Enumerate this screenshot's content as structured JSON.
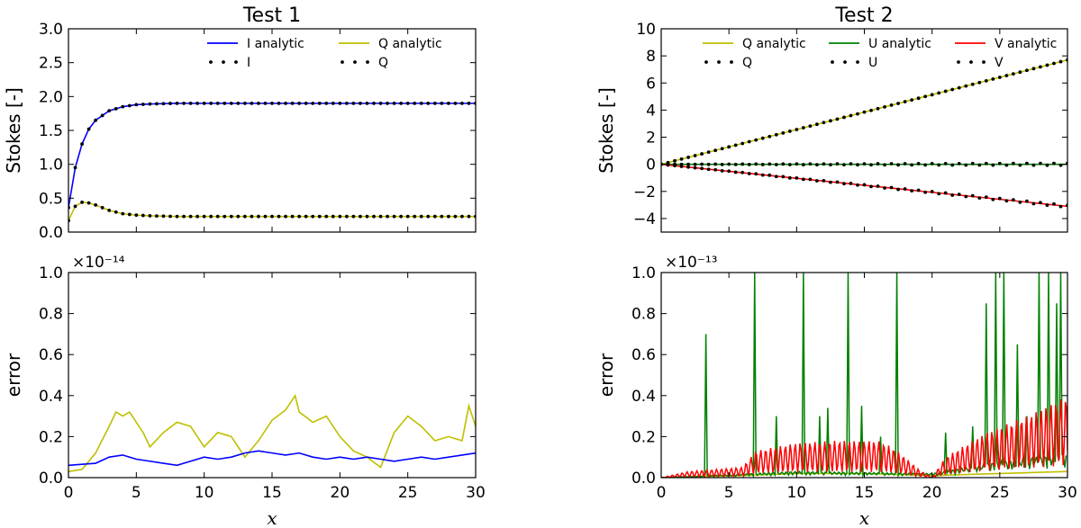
{
  "chart_data": [
    {
      "id": "test1_stokes",
      "type": "line",
      "title": "Test 1",
      "xlabel": "",
      "ylabel": "Stokes [-]",
      "xlim": [
        0,
        30
      ],
      "ylim": [
        0,
        3.0
      ],
      "xticks": [
        0,
        5,
        10,
        15,
        20,
        25,
        30
      ],
      "xtick_labels": [],
      "yticks": [
        0.0,
        0.5,
        1.0,
        1.5,
        2.0,
        2.5,
        3.0
      ],
      "ytick_labels": [
        "0.0",
        "0.5",
        "1.0",
        "1.5",
        "2.0",
        "2.5",
        "3.0"
      ],
      "legend": {
        "placement": "top-right",
        "columns": 2
      },
      "series": [
        {
          "name": "I analytic",
          "style": "line",
          "color": "#0000ff",
          "model": "i_analytic",
          "x": [
            0,
            0.5,
            1,
            1.5,
            2,
            3,
            4,
            5,
            6,
            8,
            10,
            15,
            20,
            25,
            30
          ],
          "y": [
            0.36,
            0.95,
            1.3,
            1.52,
            1.65,
            1.79,
            1.85,
            1.88,
            1.89,
            1.9,
            1.9,
            1.9,
            1.9,
            1.9,
            1.9
          ]
        },
        {
          "name": "Q analytic",
          "style": "line",
          "color": "#bfbf00",
          "model": "q_analytic",
          "x": [
            0,
            0.5,
            1,
            1.5,
            2,
            3,
            4,
            5,
            6,
            8,
            10,
            15,
            20,
            25,
            30
          ],
          "y": [
            0.17,
            0.38,
            0.44,
            0.43,
            0.4,
            0.32,
            0.27,
            0.25,
            0.24,
            0.23,
            0.23,
            0.23,
            0.23,
            0.23,
            0.23
          ]
        },
        {
          "name": "I",
          "style": "dots",
          "color": "#000000",
          "model": "i_analytic",
          "x_range": [
            0,
            30
          ],
          "x_step": 0.5
        },
        {
          "name": "Q",
          "style": "dots",
          "color": "#000000",
          "model": "q_analytic",
          "x_range": [
            0,
            30
          ],
          "x_step": 0.5
        }
      ]
    },
    {
      "id": "test1_error",
      "type": "line",
      "title": "",
      "xlabel": "x",
      "ylabel": "error",
      "exponent_label": "×10⁻¹⁴",
      "xlim": [
        0,
        30
      ],
      "ylim": [
        0,
        1.0
      ],
      "xticks": [
        0,
        5,
        10,
        15,
        20,
        25,
        30
      ],
      "xtick_labels": [
        "0",
        "5",
        "10",
        "15",
        "20",
        "25",
        "30"
      ],
      "yticks": [
        0.0,
        0.2,
        0.4,
        0.6,
        0.8,
        1.0
      ],
      "ytick_labels": [
        "0.0",
        "0.2",
        "0.4",
        "0.6",
        "0.8",
        "1.0"
      ],
      "series": [
        {
          "color": "#bfbf00",
          "x": [
            0,
            1,
            2,
            3,
            3.5,
            4,
            4.5,
            5,
            5.5,
            6,
            7,
            8,
            9,
            10,
            11,
            12,
            13,
            14,
            15,
            16,
            16.7,
            17,
            18,
            19,
            20,
            21,
            22,
            23,
            24,
            25,
            26,
            27,
            28,
            29,
            29.5,
            30
          ],
          "y": [
            0.03,
            0.04,
            0.12,
            0.25,
            0.32,
            0.3,
            0.32,
            0.27,
            0.22,
            0.15,
            0.22,
            0.27,
            0.25,
            0.15,
            0.22,
            0.2,
            0.1,
            0.18,
            0.28,
            0.33,
            0.4,
            0.32,
            0.27,
            0.3,
            0.2,
            0.13,
            0.1,
            0.05,
            0.22,
            0.3,
            0.25,
            0.18,
            0.2,
            0.18,
            0.35,
            0.25
          ]
        },
        {
          "color": "#0000ff",
          "x": [
            0,
            2,
            3,
            4,
            5,
            6,
            7,
            8,
            9,
            10,
            11,
            12,
            13,
            14,
            15,
            16,
            17,
            18,
            19,
            20,
            21,
            22,
            23,
            24,
            25,
            26,
            27,
            28,
            29,
            30
          ],
          "y": [
            0.06,
            0.07,
            0.1,
            0.11,
            0.09,
            0.08,
            0.07,
            0.06,
            0.08,
            0.1,
            0.09,
            0.1,
            0.12,
            0.13,
            0.12,
            0.11,
            0.12,
            0.1,
            0.09,
            0.1,
            0.09,
            0.1,
            0.09,
            0.08,
            0.09,
            0.1,
            0.09,
            0.1,
            0.11,
            0.12
          ]
        }
      ]
    },
    {
      "id": "test2_stokes",
      "type": "line",
      "title": "Test 2",
      "xlabel": "",
      "ylabel": "Stokes [-]",
      "xlim": [
        0,
        30
      ],
      "ylim": [
        -5,
        10
      ],
      "xticks": [
        0,
        5,
        10,
        15,
        20,
        25,
        30
      ],
      "xtick_labels": [],
      "yticks": [
        -4,
        -2,
        0,
        2,
        4,
        6,
        8,
        10
      ],
      "ytick_labels": [
        "−4",
        "−2",
        "0",
        "2",
        "4",
        "6",
        "8",
        "10"
      ],
      "legend": {
        "placement": "top",
        "columns": 3
      },
      "series": [
        {
          "name": "Q analytic",
          "style": "line",
          "color": "#bfbf00",
          "x": [
            0,
            30
          ],
          "y": [
            0,
            7.7
          ]
        },
        {
          "name": "U analytic",
          "style": "line",
          "color": "#008000",
          "x": [
            0,
            30
          ],
          "y": [
            0,
            0
          ]
        },
        {
          "name": "V analytic",
          "style": "line",
          "color": "#ff0000",
          "x": [
            0,
            30
          ],
          "y": [
            0,
            -3.1
          ]
        },
        {
          "name": "Q",
          "style": "dots",
          "color": "#000000",
          "x": [
            0,
            30
          ],
          "y": [
            0,
            7.7
          ],
          "x_step": 0.5
        },
        {
          "name": "U",
          "style": "dots",
          "color": "#000000",
          "x": [
            0,
            30
          ],
          "y": [
            0,
            0
          ],
          "x_step": 0.5,
          "oscillation": 0.15
        },
        {
          "name": "V",
          "style": "dots",
          "color": "#000000",
          "x": [
            0,
            30
          ],
          "y": [
            0,
            -3.1
          ],
          "x_step": 0.5,
          "oscillation": 0.15
        }
      ]
    },
    {
      "id": "test2_error",
      "type": "line",
      "title": "",
      "xlabel": "x",
      "ylabel": "error",
      "exponent_label": "×10⁻¹³",
      "xlim": [
        0,
        30
      ],
      "ylim": [
        0,
        1.0
      ],
      "xticks": [
        0,
        5,
        10,
        15,
        20,
        25,
        30
      ],
      "xtick_labels": [
        "0",
        "5",
        "10",
        "15",
        "20",
        "25",
        "30"
      ],
      "yticks": [
        0.0,
        0.2,
        0.4,
        0.6,
        0.8,
        1.0
      ],
      "ytick_labels": [
        "0.0",
        "0.2",
        "0.4",
        "0.6",
        "0.8",
        "1.0"
      ],
      "series": [
        {
          "color": "#bfbf00",
          "x": [
            0,
            6,
            10,
            15,
            20,
            25,
            30
          ],
          "y": [
            0,
            0.01,
            0.02,
            0.02,
            0.01,
            0.02,
            0.03
          ]
        },
        {
          "color": "#008000",
          "spikes": [
            [
              3.3,
              0.7
            ],
            [
              6.9,
              1.0
            ],
            [
              8.5,
              0.3
            ],
            [
              10.5,
              1.0
            ],
            [
              11.7,
              0.3
            ],
            [
              12.3,
              0.34
            ],
            [
              13.8,
              1.0
            ],
            [
              14.8,
              0.35
            ],
            [
              16.2,
              0.2
            ],
            [
              17.4,
              1.0
            ],
            [
              21.0,
              0.22
            ],
            [
              23.0,
              0.25
            ],
            [
              24.0,
              0.85
            ],
            [
              24.7,
              1.0
            ],
            [
              25.3,
              1.0
            ],
            [
              26.3,
              0.65
            ],
            [
              27.0,
              0.3
            ],
            [
              27.9,
              1.0
            ],
            [
              28.6,
              1.0
            ],
            [
              29.2,
              0.85
            ],
            [
              29.5,
              1.0
            ]
          ],
          "baseline": [
            [
              0,
              0
            ],
            [
              10,
              0.03
            ],
            [
              20,
              0.02
            ],
            [
              25,
              0.08
            ],
            [
              30,
              0.12
            ]
          ]
        },
        {
          "color": "#ff0000",
          "envelope": [
            [
              0,
              0.0
            ],
            [
              2,
              0.03
            ],
            [
              6,
              0.05
            ],
            [
              7,
              0.13
            ],
            [
              10,
              0.17
            ],
            [
              13,
              0.18
            ],
            [
              16,
              0.18
            ],
            [
              17,
              0.15
            ],
            [
              18,
              0.1
            ],
            [
              19,
              0.04
            ],
            [
              20,
              0.0
            ],
            [
              21,
              0.1
            ],
            [
              24,
              0.22
            ],
            [
              27,
              0.3
            ],
            [
              30,
              0.4
            ]
          ]
        }
      ]
    }
  ]
}
